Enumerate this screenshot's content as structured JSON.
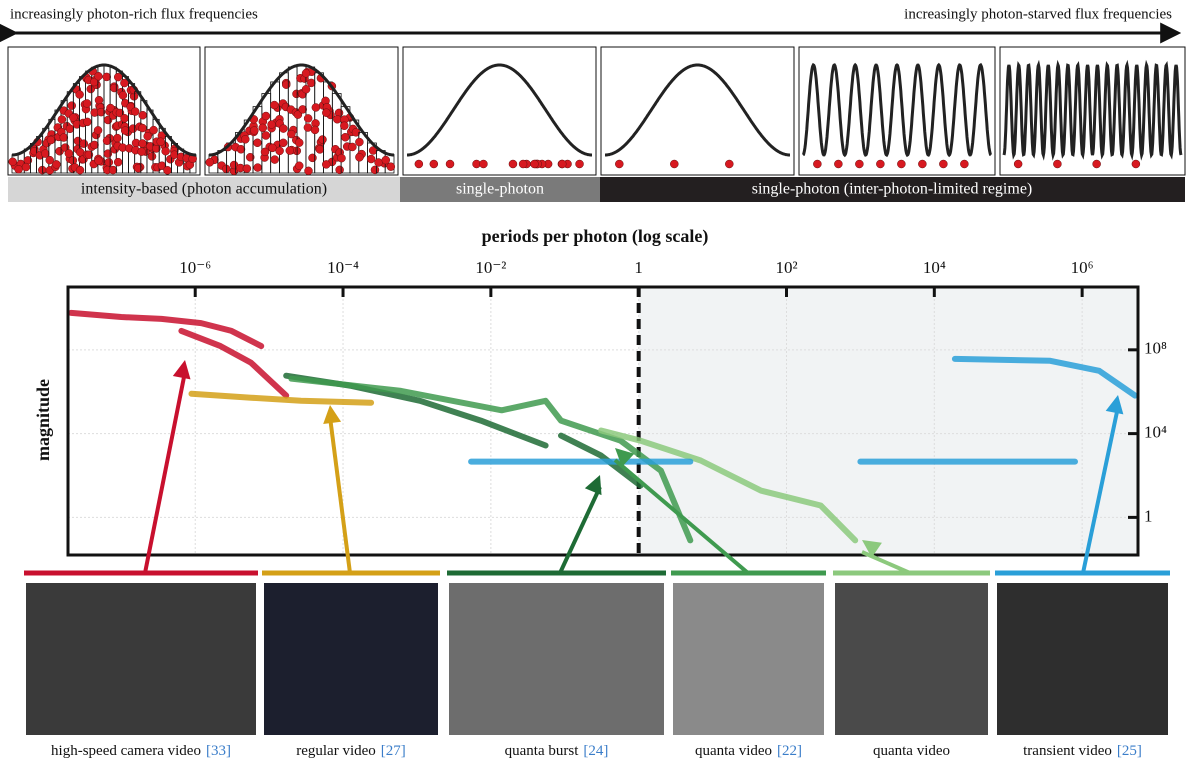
{
  "header": {
    "left": "increasingly photon-rich flux frequencies",
    "right": "increasingly photon-starved flux frequencies"
  },
  "regimes": [
    "intensity-based (photon accumulation)",
    "single-photon",
    "single-photon (inter-photon-limited regime)"
  ],
  "captions": [
    {
      "text": "high-speed camera video",
      "ref": "[33]"
    },
    {
      "text": "regular video",
      "ref": "[27]"
    },
    {
      "text": "quanta burst",
      "ref": "[24]"
    },
    {
      "text": "quanta video",
      "ref": "[22]"
    },
    {
      "text": "quanta video"
    },
    {
      "text": "transient video",
      "ref": "[25]"
    }
  ],
  "chart_data": {
    "type": "line",
    "xlabel": "periods per photon (log scale)",
    "ylabel": "magnitude",
    "xscale": "log",
    "yscale": "log",
    "grid": true,
    "xlim": [
      1.9e-08,
      5700000.0
    ],
    "ylim": [
      0.016,
      100000000000.0
    ],
    "xticks": [
      {
        "value": 1e-06,
        "label": "10⁻⁶"
      },
      {
        "value": 0.0001,
        "label": "10⁻⁴"
      },
      {
        "value": 0.01,
        "label": "10⁻²"
      },
      1,
      {
        "value": 100,
        "label": "10²"
      },
      {
        "value": 10000,
        "label": "10⁴"
      },
      {
        "value": 1000000,
        "label": "10⁶"
      }
    ],
    "yticks": [
      1,
      {
        "value": 10000,
        "label": "10⁴"
      },
      {
        "value": 100000000,
        "label": "10⁸"
      }
    ],
    "series": [
      {
        "color": "#c8102e",
        "x": [
          2.1e-08,
          1e-07,
          3.5e-07,
          1.2e-06,
          3.1e-06,
          7.8e-06,
          null,
          6.5e-07,
          2.2e-06,
          5.7e-06,
          1.7e-05
        ],
        "values": [
          5800000000.0,
          3700000000.0,
          3000000000.0,
          1900000000.0,
          800000000.0,
          150000000.0,
          null,
          800000000.0,
          150000000.0,
          24000000.0,
          650000.0
        ]
      },
      {
        "color": "#d4a017",
        "x": [
          8.9e-07,
          5.7e-06,
          2.7e-05,
          0.00024
        ],
        "values": [
          800000.0,
          520000.0,
          370000.0,
          300000.0
        ]
      },
      {
        "color": "#1e6b35",
        "x": [
          1.7e-05,
          0.00013,
          0.0011,
          0.0073,
          0.055,
          null,
          0.089,
          0.31,
          1.06
        ],
        "values": [
          5800000.0,
          1900000.0,
          370000.0,
          42000.0,
          2700.0,
          null,
          8000.0,
          890,
          33
        ]
      },
      {
        "color": "#3f9a4f",
        "x": [
          2e-05,
          0.00061,
          0.014,
          0.055,
          0.089,
          0.57,
          2,
          5
        ],
        "values": [
          4200000.0,
          1100000.0,
          130000.0,
          370000.0,
          42000.0,
          4600.0,
          170,
          0.08
        ]
      },
      {
        "color": "#8cc97d",
        "x": [
          0.31,
          1.06,
          6.9,
          45,
          290,
          850
        ],
        "values": [
          14000.0,
          4600.0,
          520,
          19,
          3.7,
          0.08
        ]
      },
      {
        "color": "#2a9fd8",
        "x": [
          0.0054,
          0.16,
          5,
          null,
          1000,
          22000.0,
          800000.0,
          null,
          19000.0,
          370000.0,
          1700000.0,
          5200000.0
        ],
        "values": [
          460,
          460,
          460,
          null,
          460,
          460,
          460,
          null,
          37000000.0,
          30000000.0,
          10000000.0,
          650000.0
        ]
      }
    ]
  }
}
